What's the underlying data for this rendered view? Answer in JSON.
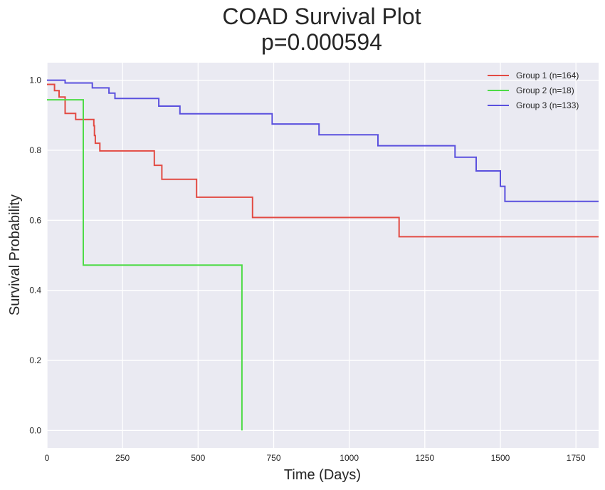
{
  "chart_data": {
    "type": "line",
    "title": "COAD Survival Plot",
    "subtitle": "p=0.000594",
    "xlabel": "Time (Days)",
    "ylabel": "Survival Probability",
    "xlim": [
      0,
      1825
    ],
    "ylim": [
      -0.05,
      1.05
    ],
    "x_ticks": [
      0,
      250,
      500,
      750,
      1000,
      1250,
      1500,
      1750
    ],
    "y_ticks": [
      0.0,
      0.2,
      0.4,
      0.6,
      0.8,
      1.0
    ],
    "x_tick_labels": [
      "0",
      "250",
      "500",
      "750",
      "1000",
      "1250",
      "1500",
      "1750"
    ],
    "y_tick_labels": [
      "0.0",
      "0.2",
      "0.4",
      "0.6",
      "0.8",
      "1.0"
    ],
    "grid": true,
    "legend_position": "top-right",
    "plot_background": "#eaeaf2",
    "grid_color": "#ffffff",
    "series": [
      {
        "name": "Group 1 (n=164)",
        "color": "#e24a43",
        "x": [
          0,
          25,
          40,
          60,
          95,
          155,
          157,
          160,
          175,
          355,
          380,
          495,
          680,
          1165,
          1825
        ],
        "y": [
          0.988,
          0.97,
          0.952,
          0.905,
          0.888,
          0.87,
          0.842,
          0.82,
          0.798,
          0.757,
          0.717,
          0.666,
          0.608,
          0.553,
          0.553
        ]
      },
      {
        "name": "Group 2 (n=18)",
        "color": "#4edb47",
        "x": [
          0,
          120,
          645
        ],
        "y": [
          0.944,
          0.472,
          0.0
        ]
      },
      {
        "name": "Group 3 (n=133)",
        "color": "#5a50de",
        "x": [
          0,
          60,
          150,
          205,
          225,
          370,
          440,
          745,
          900,
          1095,
          1350,
          1420,
          1500,
          1515,
          1825
        ],
        "y": [
          1.0,
          0.992,
          0.978,
          0.963,
          0.948,
          0.926,
          0.904,
          0.875,
          0.844,
          0.813,
          0.78,
          0.741,
          0.697,
          0.654,
          0.654
        ]
      }
    ]
  }
}
